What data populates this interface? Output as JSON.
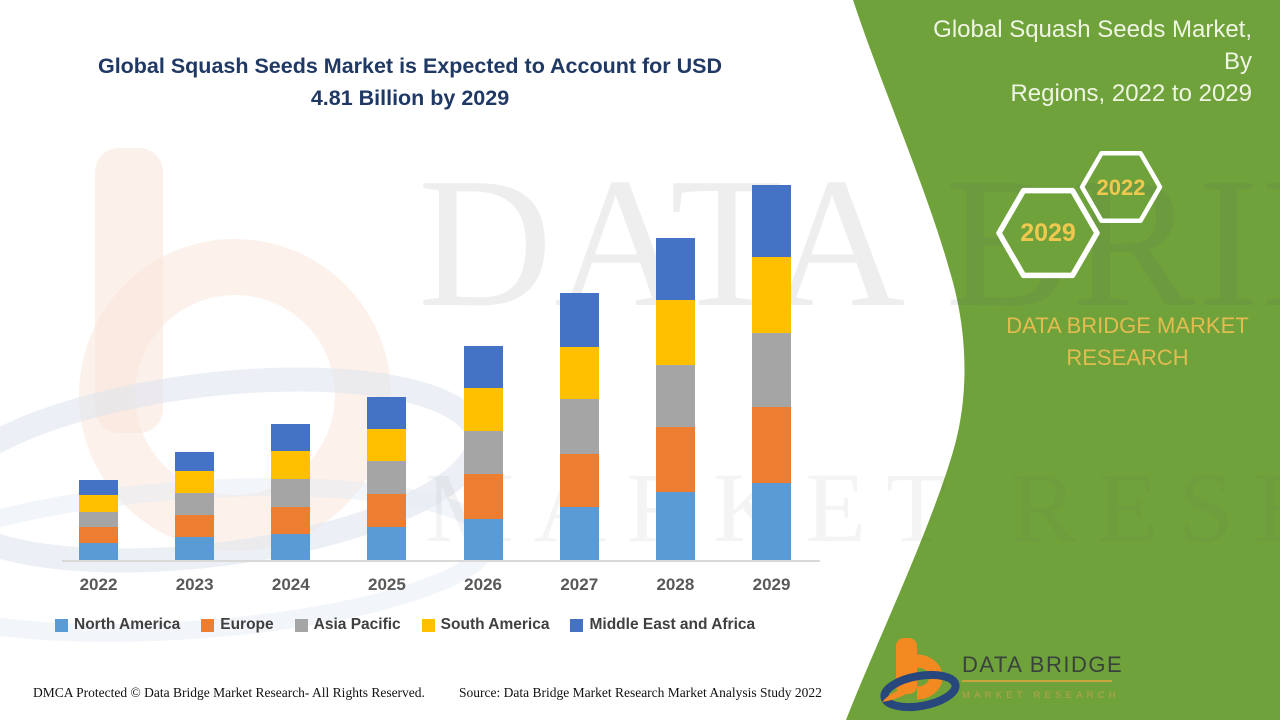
{
  "header": {
    "title_line1": "Global Squash Seeds Market is Expected to Account for USD",
    "title_line2": "4.81 Billion by 2029",
    "panel_title_line1": "Global Squash Seeds Market, By",
    "panel_title_line2": "Regions, 2022 to 2029"
  },
  "side_panel": {
    "hexagon_back_year": "2022",
    "hexagon_front_year": "2029",
    "brand_line1": "DATA BRIDGE MARKET",
    "brand_line2": "RESEARCH",
    "logo_name": "DATA BRIDGE",
    "logo_tagline": "MARKET RESEARCH",
    "colors": {
      "panel_green": "#6FA23B",
      "gold": "#EFC94F",
      "brand_gold": "#E3BC50",
      "panel_text": "#EFF5E3"
    }
  },
  "watermark": {
    "line1": "DATA BRIDGE",
    "line2": "MARKET RESEARCH"
  },
  "chart_data": {
    "type": "bar",
    "stacked": true,
    "title": "Global Squash Seeds Market, By Regions, 2022 to 2029",
    "unit": "USD Billion",
    "categories": [
      "2022",
      "2023",
      "2024",
      "2025",
      "2026",
      "2027",
      "2028",
      "2029"
    ],
    "series": [
      {
        "name": "North America",
        "color": "#5B9BD5",
        "values": [
          0.22,
          0.29,
          0.33,
          0.42,
          0.53,
          0.68,
          0.87,
          0.98
        ]
      },
      {
        "name": "Europe",
        "color": "#ED7D31",
        "values": [
          0.2,
          0.28,
          0.35,
          0.42,
          0.57,
          0.68,
          0.83,
          0.98
        ]
      },
      {
        "name": "Asia Pacific",
        "color": "#A5A5A5",
        "values": [
          0.19,
          0.29,
          0.36,
          0.42,
          0.55,
          0.7,
          0.8,
          0.94
        ]
      },
      {
        "name": "South America",
        "color": "#FFC000",
        "values": [
          0.22,
          0.28,
          0.36,
          0.42,
          0.55,
          0.66,
          0.82,
          0.98
        ]
      },
      {
        "name": "Middle East and Africa",
        "color": "#4472C4",
        "values": [
          0.19,
          0.24,
          0.34,
          0.41,
          0.54,
          0.69,
          0.8,
          0.92
        ]
      }
    ],
    "totals_usd_billion": [
      1.02,
      1.38,
      1.74,
      2.09,
      2.74,
      3.41,
      4.12,
      4.81
    ],
    "xlabel": "",
    "ylabel": "",
    "ylim": [
      0,
      5
    ],
    "grid": false,
    "y_axis_visible": false,
    "legend_position": "bottom"
  },
  "footer": {
    "dmca": "DMCA Protected © Data Bridge Market Research- All Rights Reserved.",
    "source": "Source: Data Bridge Market Research Market Analysis Study 2022"
  }
}
